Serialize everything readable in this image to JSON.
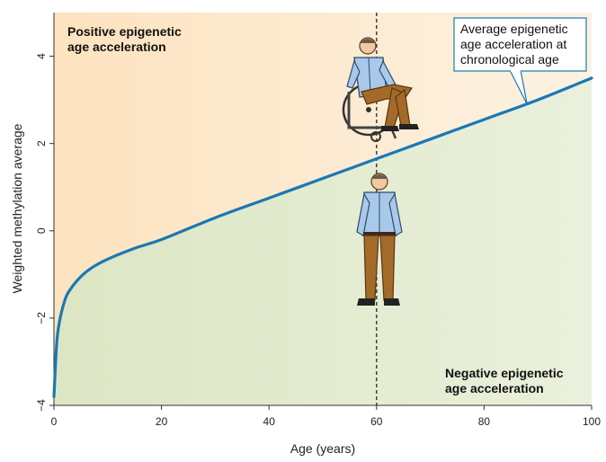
{
  "chart_data": {
    "type": "line",
    "title": "",
    "xlabel": "Age (years)",
    "ylabel": "Weighted methylation average",
    "xlim": [
      0,
      100
    ],
    "ylim": [
      -4,
      5
    ],
    "xticks": [
      0,
      20,
      40,
      60,
      80,
      100
    ],
    "yticks": [
      -4,
      -2,
      0,
      2,
      4
    ],
    "ytick_labels": [
      "−4",
      "−2",
      "0",
      "2",
      "4"
    ],
    "grid": false,
    "series": [
      {
        "name": "",
        "color": "#1a78b4",
        "x": [
          0,
          0.5,
          1,
          2,
          3,
          5,
          7,
          10,
          15,
          20,
          30,
          40,
          50,
          60,
          70,
          80,
          90,
          100
        ],
        "y": [
          -3.8,
          -2.6,
          -2.1,
          -1.6,
          -1.35,
          -1.05,
          -0.85,
          -0.65,
          -0.4,
          -0.2,
          0.3,
          0.75,
          1.2,
          1.65,
          2.1,
          2.55,
          3.0,
          3.5
        ]
      }
    ],
    "reference_line": {
      "x": 60,
      "style": "dashed"
    },
    "region_labels": {
      "above": [
        "Positive epigenetic",
        "age acceleration"
      ],
      "below": [
        "Negative epigenetic",
        "age acceleration"
      ]
    },
    "callout": {
      "lines": [
        "Average epigenetic",
        "age acceleration at",
        "chronological age"
      ],
      "points_to": {
        "x": 88,
        "y": 2.9
      }
    },
    "colors": {
      "upper_region": "#fde9c9",
      "lower_region": "#e3ebcf",
      "curve": "#1a78b4",
      "callout_border": "#1a78b4"
    },
    "illustrations": [
      "person-in-wheelchair-icon",
      "standing-person-icon"
    ]
  }
}
